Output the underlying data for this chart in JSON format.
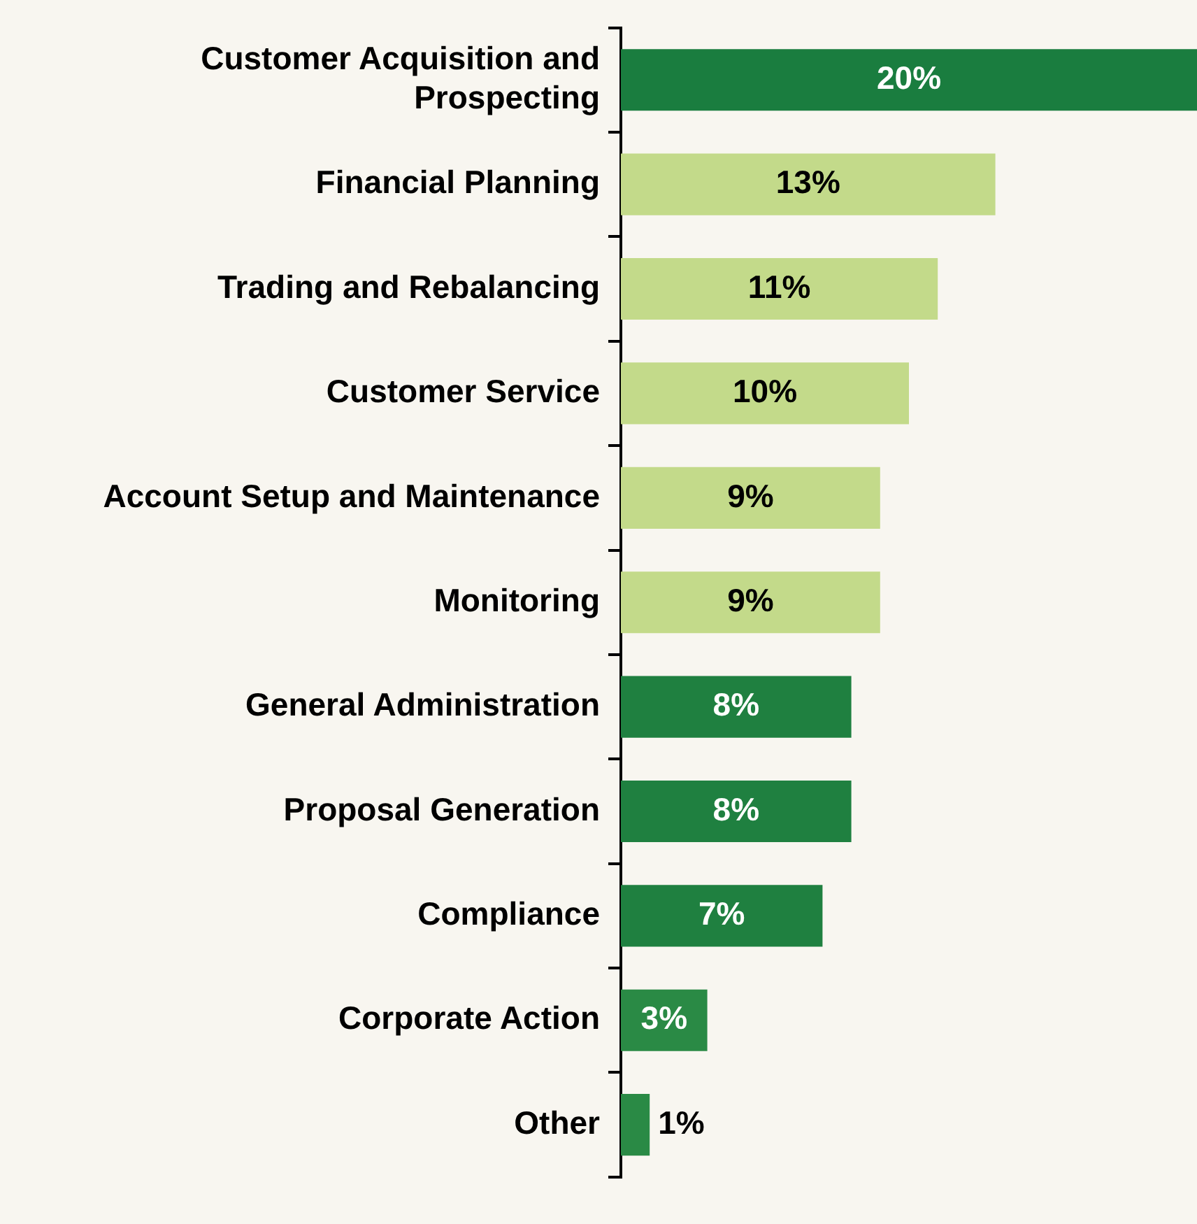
{
  "chart_data": {
    "type": "bar",
    "orientation": "horizontal",
    "categories": [
      "Customer Acquisition and Prospecting",
      "Financial Planning",
      "Trading and Rebalancing",
      "Customer Service",
      "Account Setup and Maintenance",
      "Monitoring",
      "General Administration",
      "Proposal Generation",
      "Compliance",
      "Corporate Action",
      "Other"
    ],
    "values": [
      20,
      13,
      11,
      10,
      9,
      9,
      8,
      8,
      7,
      3,
      1
    ],
    "value_labels": [
      "20%",
      "13%",
      "11%",
      "10%",
      "9%",
      "9%",
      "8%",
      "8%",
      "7%",
      "3%",
      "1%"
    ],
    "colors": [
      "#1a7d3f",
      "#c3da8a",
      "#c3da8a",
      "#c3da8a",
      "#c3da8a",
      "#c3da8a",
      "#1f8040",
      "#1f8040",
      "#1f8040",
      "#2a8a45",
      "#2a8a45"
    ]
  }
}
